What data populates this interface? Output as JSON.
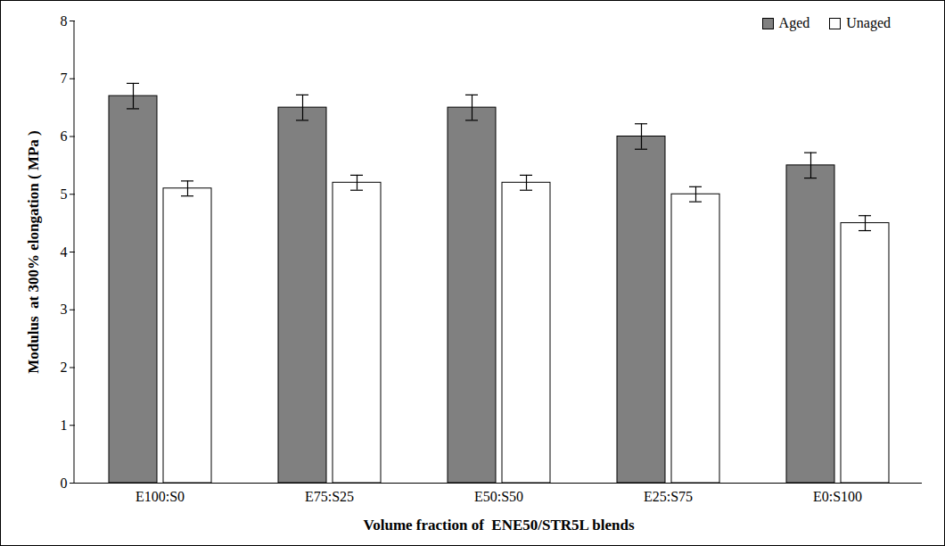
{
  "chart_data": {
    "type": "bar",
    "x_label": "Volume fraction of  ENE50/STR5L blends",
    "y_label": "Modulus  at 300% elongation ( MPa )",
    "categories": [
      "E100:S0",
      "E75:S25",
      "E50:S50",
      "E25:S75",
      "E0:S100"
    ],
    "series": [
      {
        "name": "Aged",
        "color": "#808080",
        "values": [
          6.7,
          6.5,
          6.5,
          6.0,
          5.5
        ],
        "errors": [
          0.22,
          0.22,
          0.22,
          0.22,
          0.22
        ]
      },
      {
        "name": "Unaged",
        "color": "#ffffff",
        "values": [
          5.1,
          5.2,
          5.2,
          5.0,
          4.5
        ],
        "errors": [
          0.13,
          0.13,
          0.13,
          0.13,
          0.13
        ]
      }
    ],
    "ylim": [
      0,
      8
    ],
    "yticks": [
      0,
      1,
      2,
      3,
      4,
      5,
      6,
      7,
      8
    ],
    "grid": false,
    "legend": "top-right"
  }
}
